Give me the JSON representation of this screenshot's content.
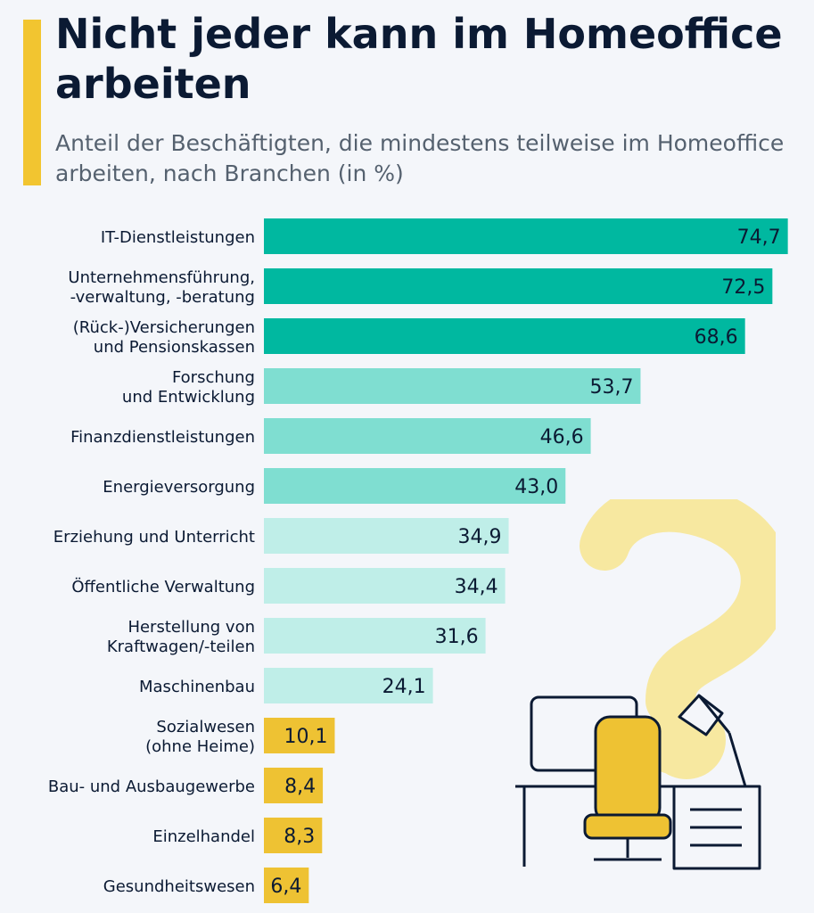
{
  "header": {
    "title": "Nicht jeder kann im Homeoffice arbeiten",
    "subtitle": "Anteil der Beschäftigten, die mindestens teilweise im Homeoffice arbeiten, nach Branchen (in %)"
  },
  "colors": {
    "accent": "#f2c530",
    "dark_teal": "#00b8a0",
    "mid_teal": "#7fded1",
    "light_teal": "#bfeee8",
    "yellow": "#eec233",
    "text": "#0b1a33",
    "background": "#f4f6fa"
  },
  "chart_data": {
    "type": "bar",
    "orientation": "horizontal",
    "title": "Nicht jeder kann im Homeoffice arbeiten",
    "subtitle": "Anteil der Beschäftigten, die mindestens teilweise im Homeoffice arbeiten, nach Branchen (in %)",
    "unit": "%",
    "xlim": [
      0,
      75
    ],
    "categories": [
      [
        "IT-Dienstleistungen"
      ],
      [
        "Unternehmensführung,",
        "-verwaltung, -beratung"
      ],
      [
        "(Rück-)Versicherungen",
        "und Pensionskassen"
      ],
      [
        "Forschung",
        "und Entwicklung"
      ],
      [
        "Finanzdienstleistungen"
      ],
      [
        "Energieversorgung"
      ],
      [
        "Erziehung und Unterricht"
      ],
      [
        "Öffentliche Verwaltung"
      ],
      [
        "Herstellung von",
        "Kraftwagen/-teilen"
      ],
      [
        "Maschinenbau"
      ],
      [
        "Sozialwesen",
        "(ohne Heime)"
      ],
      [
        "Bau- und Ausbaugewerbe"
      ],
      [
        "Einzelhandel"
      ],
      [
        "Gesundheitswesen"
      ]
    ],
    "values": [
      74.7,
      72.5,
      68.6,
      53.7,
      46.6,
      43.0,
      34.9,
      34.4,
      31.6,
      24.1,
      10.1,
      8.4,
      8.3,
      6.4
    ],
    "value_labels": [
      "74,7",
      "72,5",
      "68,6",
      "53,7",
      "46,6",
      "43,0",
      "34,9",
      "34,4",
      "31,6",
      "24,1",
      "10,1",
      "8,4",
      "8,3",
      "6,4"
    ],
    "bar_color_groups": [
      "dark_teal",
      "dark_teal",
      "dark_teal",
      "mid_teal",
      "mid_teal",
      "mid_teal",
      "light_teal",
      "light_teal",
      "light_teal",
      "light_teal",
      "yellow",
      "yellow",
      "yellow",
      "yellow"
    ]
  }
}
